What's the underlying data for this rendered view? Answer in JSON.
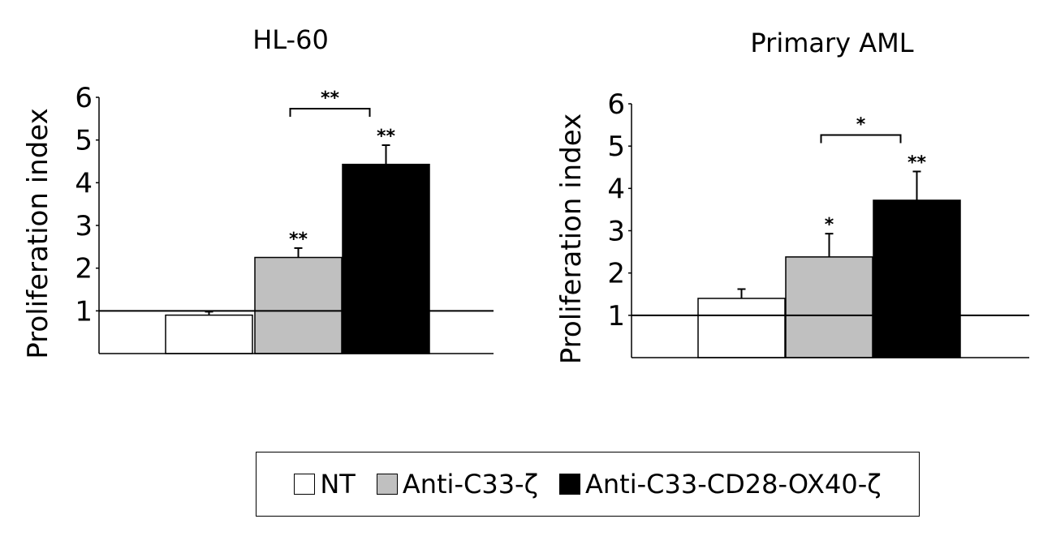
{
  "chart_data": [
    {
      "type": "bar",
      "title": "HL-60",
      "ylabel": "Proliferation index",
      "xlabel": "",
      "ylim": [
        0,
        6
      ],
      "yticks": [
        1,
        2,
        3,
        4,
        5,
        6
      ],
      "categories": [
        "NT",
        "Anti-C33-ζ",
        "Anti-C33-CD28-OX40-ζ"
      ],
      "values": [
        0.9,
        2.25,
        4.43
      ],
      "errors": [
        0.08,
        0.22,
        0.45
      ],
      "colors": [
        "#ffffff",
        "#c0c0c0",
        "#000000"
      ],
      "reference_line": 1,
      "bar_annotations": [
        "",
        "**",
        "**"
      ],
      "bracket": {
        "from": 1,
        "to": 2,
        "label": "**"
      },
      "grid": false
    },
    {
      "type": "bar",
      "title": "Primary AML",
      "ylabel": "Proliferation index",
      "xlabel": "",
      "ylim": [
        0,
        6
      ],
      "yticks": [
        1,
        2,
        3,
        4,
        5,
        6
      ],
      "categories": [
        "NT",
        "Anti-C33-ζ",
        "Anti-C33-CD28-OX40-ζ"
      ],
      "values": [
        1.4,
        2.38,
        3.72
      ],
      "errors": [
        0.22,
        0.55,
        0.68
      ],
      "colors": [
        "#ffffff",
        "#c0c0c0",
        "#000000"
      ],
      "reference_line": 1,
      "bar_annotations": [
        "",
        "*",
        "**"
      ],
      "bracket": {
        "from": 1,
        "to": 2,
        "label": "*"
      },
      "grid": false
    }
  ],
  "legend": {
    "placement": "bottom-center",
    "items": [
      {
        "label": "NT",
        "color": "#ffffff"
      },
      {
        "label": "Anti-C33-ζ",
        "color": "#c0c0c0"
      },
      {
        "label": "Anti-C33-CD28-OX40-ζ",
        "color": "#000000"
      }
    ]
  }
}
